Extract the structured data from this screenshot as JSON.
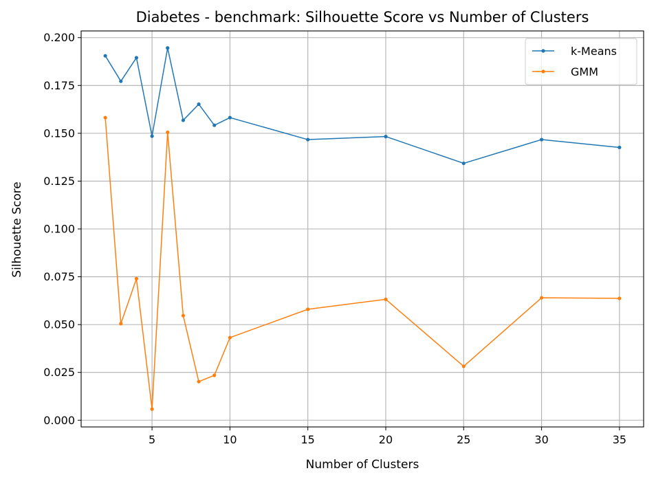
{
  "chart_data": {
    "type": "line",
    "title": "Diabetes - benchmark: Silhouette Score vs Number of Clusters",
    "xlabel": "Number of Clusters",
    "ylabel": "Silhouette Score",
    "x": [
      2,
      3,
      4,
      5,
      6,
      7,
      8,
      9,
      10,
      15,
      20,
      25,
      30,
      35
    ],
    "xlim": [
      0.45,
      36.55
    ],
    "ylim": [
      -0.0035,
      0.2035
    ],
    "xticks": [
      5,
      10,
      15,
      20,
      25,
      30,
      35
    ],
    "yticks": [
      0.0,
      0.025,
      0.05,
      0.075,
      0.1,
      0.125,
      0.15,
      0.175,
      0.2
    ],
    "xtick_labels": [
      "5",
      "10",
      "15",
      "20",
      "25",
      "30",
      "35"
    ],
    "ytick_labels": [
      "0.000",
      "0.025",
      "0.050",
      "0.075",
      "0.100",
      "0.125",
      "0.150",
      "0.175",
      "0.200"
    ],
    "grid": true,
    "legend_position": "top-right",
    "series": [
      {
        "name": "k-Means",
        "color": "#1f77b4",
        "marker": "circle",
        "values": [
          0.1905,
          0.1772,
          0.1895,
          0.1485,
          0.1946,
          0.1568,
          0.1652,
          0.1542,
          0.1582,
          0.1467,
          0.1483,
          0.1343,
          0.1467,
          0.1426
        ]
      },
      {
        "name": "GMM",
        "color": "#ff7f0e",
        "marker": "circle",
        "values": [
          0.1582,
          0.0505,
          0.074,
          0.0058,
          0.1505,
          0.0547,
          0.0202,
          0.0235,
          0.0432,
          0.058,
          0.0632,
          0.0282,
          0.064,
          0.0637
        ]
      }
    ]
  }
}
